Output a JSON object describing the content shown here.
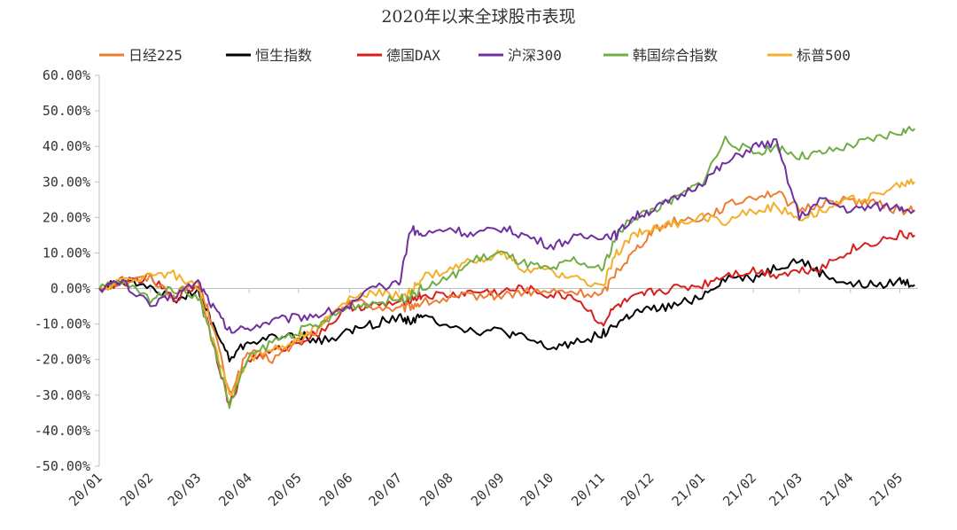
{
  "chart_data": {
    "type": "line",
    "title": "2020年以来全球股市表现",
    "xlabel": "",
    "ylabel": "",
    "ylim": [
      -50,
      60
    ],
    "y_ticks": [
      60,
      50,
      40,
      30,
      20,
      10,
      0,
      -10,
      -20,
      -30,
      -40,
      -50
    ],
    "y_tick_labels": [
      "60.00%",
      "50.00%",
      "40.00%",
      "30.00%",
      "20.00%",
      "10.00%",
      "0.00%",
      "-10.00%",
      "-20.00%",
      "-30.00%",
      "-40.00%",
      "-50.00%"
    ],
    "x_ticks": [
      "20/01",
      "20/02",
      "20/03",
      "20/04",
      "20/05",
      "20/06",
      "20/07",
      "20/08",
      "20/09",
      "20/10",
      "20/11",
      "20/12",
      "21/01",
      "21/02",
      "21/03",
      "21/04",
      "21/05"
    ],
    "grid": false,
    "legend_position": "top",
    "x": [
      "2020-01-01",
      "2020-01-15",
      "2020-02-01",
      "2020-02-15",
      "2020-03-01",
      "2020-03-10",
      "2020-03-20",
      "2020-03-31",
      "2020-04-15",
      "2020-05-01",
      "2020-05-15",
      "2020-06-01",
      "2020-06-15",
      "2020-07-01",
      "2020-07-08",
      "2020-07-15",
      "2020-08-01",
      "2020-08-15",
      "2020-09-01",
      "2020-09-15",
      "2020-10-01",
      "2020-10-15",
      "2020-11-01",
      "2020-11-10",
      "2020-11-20",
      "2020-12-01",
      "2020-12-15",
      "2021-01-01",
      "2021-01-15",
      "2021-02-01",
      "2021-02-15",
      "2021-03-01",
      "2021-03-15",
      "2021-04-01",
      "2021-04-15",
      "2021-05-01",
      "2021-05-10"
    ],
    "series": [
      {
        "name": "日经225",
        "color": "#ED7D31",
        "values": [
          0,
          2,
          3,
          -2,
          2,
          -10,
          -30,
          -18,
          -20,
          -15,
          -11,
          -3,
          -5,
          -6,
          -5,
          -4,
          -3,
          -2,
          -2,
          -1,
          -1,
          -1,
          -2,
          5,
          10,
          16,
          19,
          20,
          23,
          26,
          27,
          22,
          24,
          25,
          24,
          22,
          22
        ]
      },
      {
        "name": "恒生指数",
        "color": "#000000",
        "values": [
          0,
          2,
          1,
          -3,
          -1,
          -10,
          -20,
          -15,
          -14,
          -13,
          -15,
          -12,
          -10,
          -8,
          -9,
          -8,
          -10,
          -12,
          -12,
          -14,
          -17,
          -15,
          -13,
          -10,
          -7,
          -6,
          -5,
          -2,
          3,
          3,
          6,
          8,
          4,
          1,
          1,
          2,
          1
        ]
      },
      {
        "name": "德国DAX",
        "color": "#D91E1E",
        "values": [
          0,
          2,
          3,
          -3,
          1,
          -15,
          -33,
          -20,
          -18,
          -15,
          -12,
          -5,
          -5,
          -4,
          -3,
          -2,
          -2,
          -1,
          -1,
          0,
          -2,
          -2,
          -10,
          -5,
          -3,
          -1,
          0,
          1,
          4,
          5,
          4,
          5,
          6,
          11,
          13,
          15,
          15
        ]
      },
      {
        "name": "沪深300",
        "color": "#7030A0",
        "values": [
          0,
          2,
          -5,
          -2,
          2,
          -5,
          -12,
          -11,
          -9,
          -8,
          -7,
          -5,
          0,
          1,
          17,
          15,
          17,
          15,
          17,
          15,
          12,
          14,
          15,
          15,
          20,
          22,
          25,
          30,
          35,
          40,
          41,
          20,
          25,
          22,
          23,
          23,
          22
        ]
      },
      {
        "name": "韩国综合指数",
        "color": "#70AD47",
        "values": [
          0,
          2,
          -3,
          0,
          -2,
          -15,
          -33,
          -20,
          -15,
          -12,
          -10,
          -5,
          -4,
          -3,
          -2,
          0,
          3,
          8,
          10,
          7,
          5,
          8,
          5,
          15,
          20,
          22,
          25,
          30,
          42,
          38,
          40,
          37,
          38,
          40,
          42,
          44,
          45
        ]
      },
      {
        "name": "标普500",
        "color": "#F2B02A",
        "values": [
          0,
          2,
          4,
          4,
          0,
          -15,
          -30,
          -20,
          -17,
          -14,
          -10,
          -3,
          -1,
          -2,
          -1,
          3,
          5,
          8,
          10,
          5,
          5,
          3,
          0,
          10,
          15,
          17,
          18,
          20,
          19,
          22,
          23,
          20,
          22,
          25,
          26,
          29,
          30
        ]
      }
    ]
  }
}
